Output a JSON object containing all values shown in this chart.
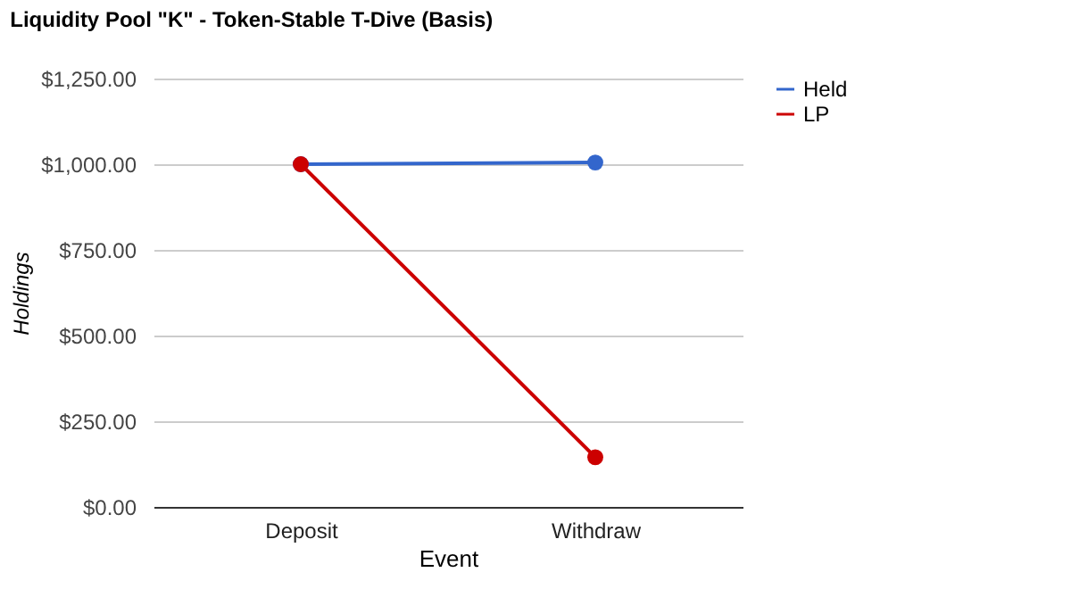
{
  "chart_data": {
    "type": "line",
    "title": "Liquidity Pool \"K\" - Token-Stable T-Dive (Basis)",
    "xlabel": "Event",
    "ylabel": "Holdings",
    "categories": [
      "Deposit",
      "Withdraw"
    ],
    "series": [
      {
        "name": "Held",
        "color": "#3366cc",
        "values": [
          1000,
          1005
        ]
      },
      {
        "name": "LP",
        "color": "#cc0000",
        "values": [
          1000,
          145
        ]
      }
    ],
    "ylim": [
      0,
      1250
    ],
    "yticks": [
      {
        "value": 0,
        "label": "$0.00"
      },
      {
        "value": 250,
        "label": "$250.00"
      },
      {
        "value": 500,
        "label": "$500.00"
      },
      {
        "value": 750,
        "label": "$750.00"
      },
      {
        "value": 1000,
        "label": "$1,000.00"
      },
      {
        "value": 1250,
        "label": "$1,250.00"
      }
    ],
    "grid": "y",
    "legend": "top right",
    "marker": "circle",
    "line_style": "solid"
  }
}
